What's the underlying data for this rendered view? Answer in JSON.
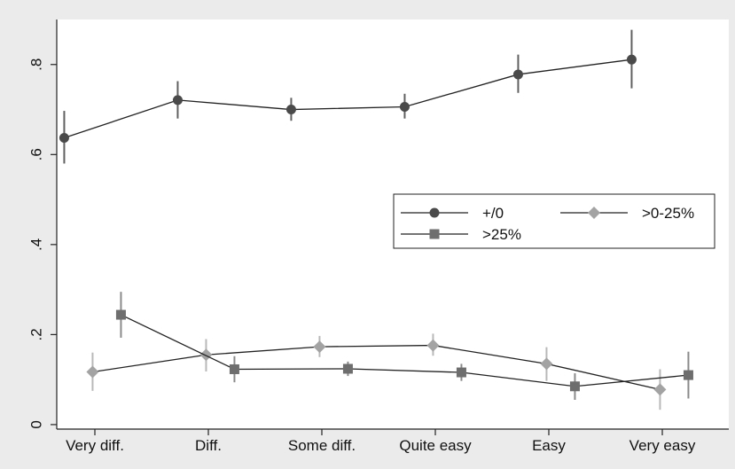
{
  "chart_data": {
    "type": "line",
    "title": "",
    "xlabel": "",
    "ylabel": "",
    "categories": [
      "Very diff.",
      "Diff.",
      "Some diff.",
      "Quite easy",
      "Easy",
      "Very easy"
    ],
    "ylim": [
      -0.01,
      0.9
    ],
    "yticks": [
      0,
      0.2,
      0.4,
      0.6,
      0.8
    ],
    "ytick_labels": [
      "0",
      ".2",
      ".4",
      ".6",
      ".8"
    ],
    "grid": false,
    "legend_position": "right",
    "colors": {
      "page_background": "#ebebeb",
      "plot_background": "#ffffff"
    },
    "series": [
      {
        "name": "+/0",
        "marker": "circle",
        "color": "#4a4a4a",
        "errcolor": "#606060",
        "offset": -0.27,
        "values": [
          0.637,
          0.721,
          0.7,
          0.706,
          0.778,
          0.811
        ],
        "ci_low": [
          0.58,
          0.68,
          0.675,
          0.68,
          0.737,
          0.747
        ],
        "ci_high": [
          0.697,
          0.763,
          0.726,
          0.735,
          0.822,
          0.877
        ]
      },
      {
        "name": ">0-25%",
        "marker": "diamond",
        "color": "#a3a3a3",
        "errcolor": "#b8b8b8",
        "offset": -0.02,
        "values": [
          0.117,
          0.155,
          0.173,
          0.176,
          0.135,
          0.078
        ],
        "ci_low": [
          0.075,
          0.118,
          0.15,
          0.153,
          0.097,
          0.033
        ],
        "ci_high": [
          0.16,
          0.19,
          0.197,
          0.202,
          0.172,
          0.123
        ]
      },
      {
        "name": ">25%",
        "marker": "square",
        "color": "#6e6e6e",
        "errcolor": "#8a8a8a",
        "offset": 0.23,
        "values": [
          0.244,
          0.123,
          0.124,
          0.116,
          0.085,
          0.11
        ],
        "ci_low": [
          0.193,
          0.094,
          0.108,
          0.097,
          0.055,
          0.058
        ],
        "ci_high": [
          0.295,
          0.152,
          0.14,
          0.135,
          0.114,
          0.162
        ]
      }
    ],
    "legend": [
      {
        "label": "+/0",
        "marker": "circle"
      },
      {
        "label": ">0-25%",
        "marker": "diamond"
      },
      {
        "label": ">25%",
        "marker": "square"
      }
    ]
  }
}
